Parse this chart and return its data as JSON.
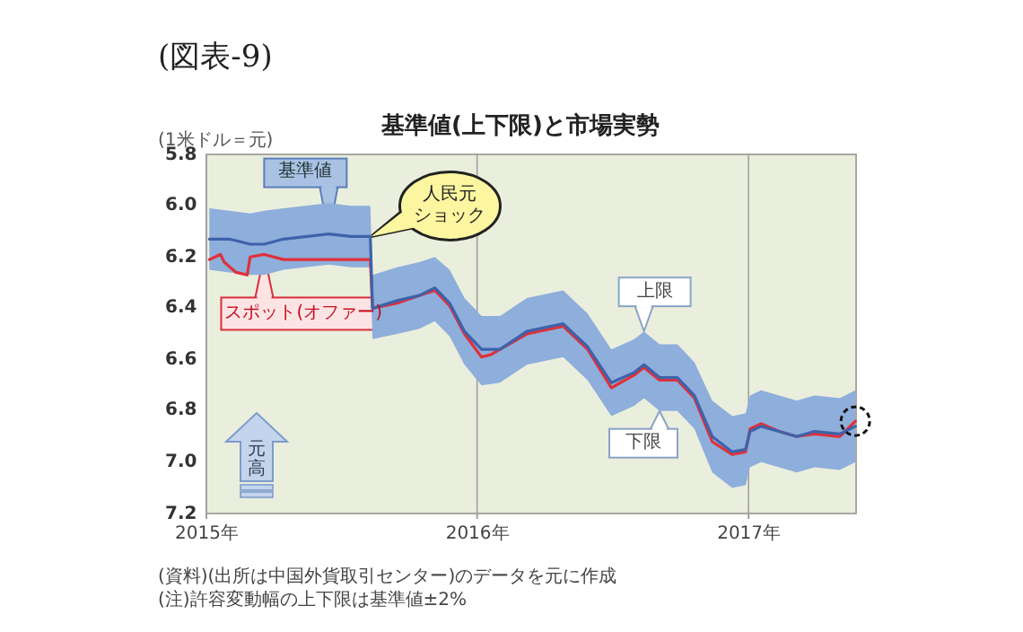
{
  "chart_data": {
    "type": "line",
    "title": "基準値(上下限)と市場実勢",
    "ylabel": "(1米ドル＝元)",
    "annotations": [
      "(図表-9)",
      {
        "text": "人民元ショック",
        "x": "2015-08-11",
        "y": 6.12
      },
      {
        "text": "上限",
        "x": "2016-08-13",
        "y": 6.49
      },
      {
        "text": "下限",
        "x": "2016-09-03",
        "y": 6.8
      },
      "元高",
      "(資料)(出所は中国外貨取引センター)のデータを元に作成",
      "(注)許容変動幅の上下限は基準値±2%"
    ],
    "xlim": [
      "2015-01-01",
      "2017-05-26"
    ],
    "xticks": [
      {
        "value": "2015-01-01",
        "label": "2015年"
      },
      {
        "value": "2016-01-01",
        "label": "2016年"
      },
      {
        "value": "2017-01-01",
        "label": "2017年"
      }
    ],
    "ylim": [
      7.2,
      5.8
    ],
    "yticks": [
      5.8,
      {
        "value": 6.0,
        "label": "6.0"
      },
      6.2,
      6.4,
      6.6,
      6.8,
      {
        "value": 7.0,
        "label": "7.0"
      },
      7.2
    ],
    "grid": "x",
    "series": [
      {
        "name": "基準値",
        "color": "#3d62aa",
        "x": [
          "2015-01-05",
          "2015-02-01",
          "2015-03-01",
          "2015-03-20",
          "2015-04-15",
          "2015-06-15",
          "2015-07-15",
          "2015-08-10",
          "2015-08-13",
          "2015-09-15",
          "2015-10-15",
          "2015-11-05",
          "2015-11-25",
          "2015-12-15",
          "2016-01-07",
          "2016-02-01",
          "2016-03-08",
          "2016-04-26",
          "2016-05-29",
          "2016-06-30",
          "2016-07-31",
          "2016-08-13",
          "2016-09-03",
          "2016-09-27",
          "2016-10-20",
          "2016-11-13",
          "2016-12-10",
          "2016-12-28",
          "2017-01-03",
          "2017-01-18",
          "2017-02-11",
          "2017-03-07",
          "2017-03-31",
          "2017-05-04",
          "2017-05-25"
        ],
        "values": [
          6.13,
          6.13,
          6.15,
          6.15,
          6.13,
          6.11,
          6.12,
          6.12,
          6.4,
          6.37,
          6.35,
          6.32,
          6.38,
          6.49,
          6.56,
          6.56,
          6.49,
          6.46,
          6.55,
          6.69,
          6.65,
          6.62,
          6.67,
          6.67,
          6.74,
          6.9,
          6.96,
          6.95,
          6.88,
          6.86,
          6.88,
          6.9,
          6.88,
          6.89,
          6.86
        ],
        "lower": [
          6.01,
          6.02,
          6.03,
          6.02,
          6.01,
          5.99,
          6.0,
          6.0,
          6.27,
          6.24,
          6.22,
          6.2,
          6.25,
          6.36,
          6.43,
          6.43,
          6.36,
          6.33,
          6.42,
          6.56,
          6.52,
          6.49,
          6.54,
          6.54,
          6.61,
          6.76,
          6.82,
          6.81,
          6.74,
          6.72,
          6.74,
          6.76,
          6.74,
          6.75,
          6.72
        ],
        "upper": [
          6.25,
          6.26,
          6.27,
          6.27,
          6.25,
          6.23,
          6.24,
          6.24,
          6.52,
          6.5,
          6.48,
          6.45,
          6.51,
          6.62,
          6.7,
          6.69,
          6.62,
          6.59,
          6.68,
          6.82,
          6.78,
          6.75,
          6.8,
          6.8,
          6.87,
          7.04,
          7.1,
          7.09,
          7.02,
          7.0,
          7.02,
          7.04,
          7.02,
          7.03,
          7.0
        ]
      },
      {
        "name": "スポット(オファー)",
        "color": "#e0303a",
        "x": [
          "2015-01-05",
          "2015-01-20",
          "2015-01-25",
          "2015-02-10",
          "2015-02-25",
          "2015-03-01",
          "2015-03-20",
          "2015-04-15",
          "2015-06-15",
          "2015-08-10",
          "2015-08-13",
          "2015-09-15",
          "2015-10-15",
          "2015-11-05",
          "2015-11-25",
          "2015-12-15",
          "2016-01-07",
          "2016-01-20",
          "2016-02-01",
          "2016-03-08",
          "2016-04-26",
          "2016-05-29",
          "2016-06-30",
          "2016-07-31",
          "2016-08-13",
          "2016-09-03",
          "2016-09-27",
          "2016-10-20",
          "2016-11-13",
          "2016-12-10",
          "2016-12-28",
          "2017-01-03",
          "2017-01-18",
          "2017-02-11",
          "2017-03-07",
          "2017-03-31",
          "2017-05-04",
          "2017-05-25"
        ],
        "values": [
          6.21,
          6.19,
          6.22,
          6.26,
          6.27,
          6.2,
          6.19,
          6.21,
          6.21,
          6.21,
          6.4,
          6.38,
          6.35,
          6.33,
          6.39,
          6.5,
          6.59,
          6.58,
          6.56,
          6.5,
          6.47,
          6.56,
          6.71,
          6.66,
          6.63,
          6.68,
          6.68,
          6.75,
          6.92,
          6.97,
          6.96,
          6.87,
          6.85,
          6.88,
          6.9,
          6.89,
          6.9,
          6.84
        ]
      }
    ]
  }
}
